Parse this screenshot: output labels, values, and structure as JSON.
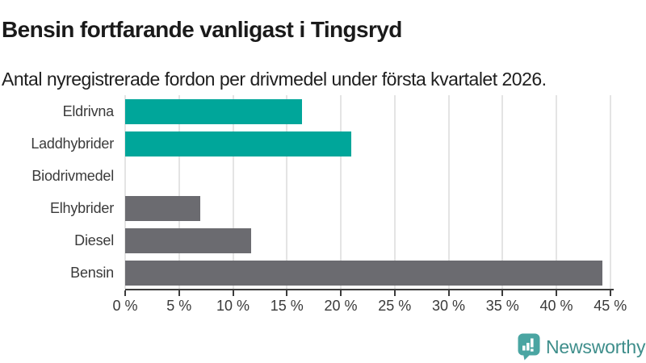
{
  "header": {
    "title": "Bensin fortfarande vanligast i Tingsryd",
    "subtitle": "Antal nyregistrerade fordon per drivmedel under första kvartalet 2026."
  },
  "chart_data": {
    "type": "bar",
    "orientation": "horizontal",
    "categories": [
      "Eldrivna",
      "Laddhybrider",
      "Biodrivmedel",
      "Elhybrider",
      "Diesel",
      "Bensin"
    ],
    "values": [
      16.4,
      21.0,
      0,
      7.0,
      11.7,
      44.3
    ],
    "unit": "%",
    "bar_color_keys": [
      "teal",
      "teal",
      "gray",
      "gray",
      "gray",
      "gray"
    ],
    "colors": {
      "teal": "#00A69A",
      "gray": "#6B6B70",
      "gridline": "#e4e4e4",
      "axis": "#3b3b3b",
      "text": "#3a3a3a"
    },
    "xlim": [
      0,
      45
    ],
    "x_ticks": [
      0,
      5,
      10,
      15,
      20,
      25,
      30,
      35,
      40,
      45
    ],
    "x_tick_labels": [
      "0 %",
      "5 %",
      "10 %",
      "15 %",
      "20 %",
      "25 %",
      "30 %",
      "35 %",
      "40 %",
      "45 %"
    ],
    "grid": true,
    "legend": "none"
  },
  "branding": {
    "name": "Newsworthy",
    "wordmark_color": "#3E8E8B",
    "icon": "newsworthy-speech-bubble-bar-chart-icon",
    "icon_color": "#4AA5A2"
  }
}
